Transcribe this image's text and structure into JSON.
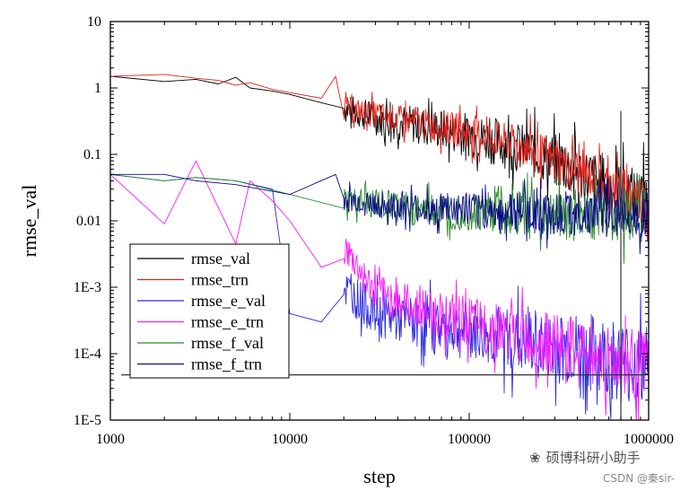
{
  "chart_data": {
    "type": "line",
    "title": "",
    "xlabel": "step",
    "ylabel": "rmse_val",
    "xscale": "log",
    "yscale": "log",
    "xlim": [
      1000,
      1000000
    ],
    "ylim": [
      1e-05,
      10
    ],
    "x_ticks": [
      "1000",
      "10000",
      "100000",
      "1000000"
    ],
    "y_ticks": [
      "1E-5",
      "1E-4",
      "1E-3",
      "0.01",
      "0.1",
      "1",
      "10"
    ],
    "grid": false,
    "legend_position": "bottom-left",
    "series": [
      {
        "name": "rmse_val",
        "color": "#000000",
        "points": [
          [
            1000,
            1.5
          ],
          [
            2000,
            1.25
          ],
          [
            3000,
            1.35
          ],
          [
            4000,
            1.15
          ],
          [
            5000,
            1.45
          ],
          [
            6000,
            1.0
          ],
          [
            8000,
            0.9
          ],
          [
            10000,
            0.8
          ],
          [
            15000,
            0.6
          ],
          [
            20000,
            0.5
          ],
          [
            30000,
            0.35
          ],
          [
            50000,
            0.28
          ],
          [
            100000,
            0.2
          ],
          [
            200000,
            0.12
          ],
          [
            300000,
            0.08
          ],
          [
            500000,
            0.04
          ],
          [
            700000,
            0.025
          ],
          [
            1000000,
            0.02
          ]
        ],
        "noise": 0.45
      },
      {
        "name": "rmse_trn",
        "color": "#e8201a",
        "points": [
          [
            1000,
            1.5
          ],
          [
            2000,
            1.6
          ],
          [
            3000,
            1.4
          ],
          [
            4000,
            1.3
          ],
          [
            5000,
            1.1
          ],
          [
            6000,
            1.2
          ],
          [
            8000,
            0.95
          ],
          [
            10000,
            0.85
          ],
          [
            15000,
            0.7
          ],
          [
            18000,
            1.5
          ],
          [
            20000,
            0.5
          ],
          [
            30000,
            0.4
          ],
          [
            50000,
            0.3
          ],
          [
            100000,
            0.22
          ],
          [
            200000,
            0.13
          ],
          [
            300000,
            0.08
          ],
          [
            500000,
            0.045
          ],
          [
            700000,
            0.028
          ],
          [
            1000000,
            0.02
          ]
        ],
        "noise": 0.35
      },
      {
        "name": "rmse_e_val",
        "color": "#2a2ae0",
        "points": [
          [
            1000,
            0.05
          ],
          [
            2000,
            0.04
          ],
          [
            3000,
            0.045
          ],
          [
            5000,
            0.04
          ],
          [
            8000,
            0.03
          ],
          [
            10000,
            0.0004
          ],
          [
            15000,
            0.0003
          ],
          [
            20000,
            0.001
          ],
          [
            30000,
            0.0004
          ],
          [
            50000,
            0.0003
          ],
          [
            100000,
            0.00022
          ],
          [
            200000,
            0.00015
          ],
          [
            500000,
            0.0001
          ],
          [
            1000000,
            6e-05
          ]
        ],
        "noise": 0.6
      },
      {
        "name": "rmse_e_trn",
        "color": "#ff19ff",
        "points": [
          [
            1000,
            0.05
          ],
          [
            2000,
            0.009
          ],
          [
            3000,
            0.08
          ],
          [
            5000,
            0.0045
          ],
          [
            6000,
            0.04
          ],
          [
            8000,
            0.02
          ],
          [
            10000,
            0.01
          ],
          [
            15000,
            0.002
          ],
          [
            20000,
            0.004
          ],
          [
            30000,
            0.0008
          ],
          [
            50000,
            0.0005
          ],
          [
            100000,
            0.0003
          ],
          [
            200000,
            0.00018
          ],
          [
            500000,
            0.0001
          ],
          [
            1000000,
            6e-05
          ]
        ],
        "noise": 0.5
      },
      {
        "name": "rmse_f_val",
        "color": "#2b8a2b",
        "points": [
          [
            1000,
            0.05
          ],
          [
            2000,
            0.04
          ],
          [
            3000,
            0.045
          ],
          [
            5000,
            0.04
          ],
          [
            10000,
            0.025
          ],
          [
            20000,
            0.02
          ],
          [
            50000,
            0.015
          ],
          [
            100000,
            0.014
          ],
          [
            300000,
            0.013
          ],
          [
            1000000,
            0.013
          ]
        ],
        "noise": 0.4
      },
      {
        "name": "rmse_f_trn",
        "color": "#0a0a88",
        "points": [
          [
            1000,
            0.05
          ],
          [
            2000,
            0.05
          ],
          [
            3000,
            0.04
          ],
          [
            5000,
            0.035
          ],
          [
            10000,
            0.025
          ],
          [
            18000,
            0.05
          ],
          [
            20000,
            0.02
          ],
          [
            50000,
            0.015
          ],
          [
            100000,
            0.014
          ],
          [
            300000,
            0.013
          ],
          [
            1000000,
            0.013
          ]
        ],
        "noise": 0.35
      }
    ],
    "annotations": [
      {
        "type": "vline",
        "x": 700000
      },
      {
        "type": "hline",
        "y": 4.8e-05
      }
    ]
  },
  "watermark": {
    "brand": "硕博科研小助手",
    "source": "CSDN @秦sir-"
  }
}
